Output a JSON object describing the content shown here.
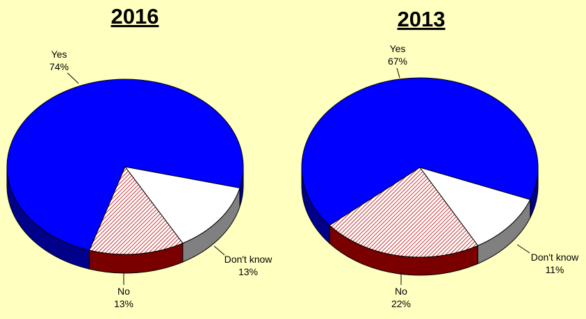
{
  "colors": {
    "background": "#ffffc0",
    "yes": "#0000ff",
    "no_hatch": "#cc3333",
    "no_side": "#7a0000",
    "dont_know": "#ffffff",
    "dont_know_side": "#808080",
    "yes_side": "#00008a"
  },
  "chart_data": [
    {
      "type": "pie",
      "title": "2016",
      "slices": [
        {
          "label": "Yes",
          "value": 74,
          "value_label": "74%"
        },
        {
          "label": "Don't know",
          "value": 13,
          "value_label": "13%"
        },
        {
          "label": "No",
          "value": 13,
          "value_label": "13%"
        }
      ],
      "style": "3d"
    },
    {
      "type": "pie",
      "title": "2013",
      "slices": [
        {
          "label": "Yes",
          "value": 67,
          "value_label": "67%"
        },
        {
          "label": "Don't know",
          "value": 11,
          "value_label": "11%"
        },
        {
          "label": "No",
          "value": 22,
          "value_label": "22%"
        }
      ],
      "style": "3d"
    }
  ]
}
